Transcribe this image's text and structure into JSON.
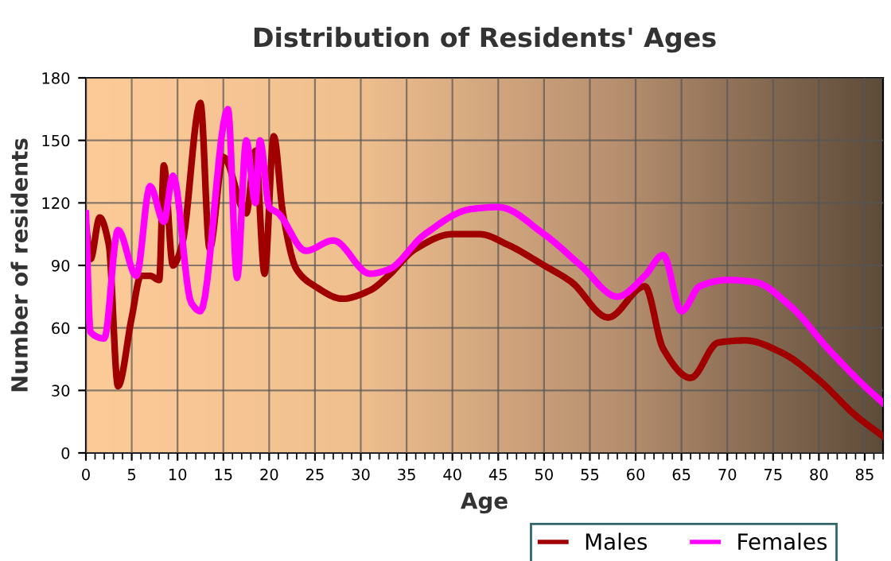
{
  "chart_data": {
    "type": "line",
    "title": "Distribution of Residents' Ages",
    "xlabel": "Age",
    "ylabel": "Number of residents",
    "xlim": [
      0,
      87
    ],
    "xticks": [
      0,
      5,
      10,
      15,
      20,
      25,
      30,
      35,
      40,
      45,
      50,
      55,
      60,
      65,
      70,
      75,
      80,
      85
    ],
    "ylim": [
      0,
      180
    ],
    "yticks": [
      0,
      30,
      60,
      90,
      120,
      150,
      180
    ],
    "grid": true,
    "legend": "bottom",
    "series": [
      {
        "name": "Males",
        "color": "#a00000",
        "x": [
          0,
          0.5,
          1.5,
          2.5,
          3.5,
          5,
          6,
          7,
          8,
          8.5,
          9.5,
          10.5,
          12.5,
          13.5,
          15,
          17.5,
          18.5,
          19.5,
          20.5,
          21.5,
          23,
          25,
          28,
          31,
          33,
          36,
          40,
          43,
          46,
          50,
          53,
          57,
          61,
          63,
          66,
          69,
          72,
          76,
          80,
          84,
          87
        ],
        "values": [
          110,
          93,
          113,
          100,
          32,
          65,
          85,
          85,
          83,
          138,
          90,
          100,
          168,
          98,
          142,
          115,
          145,
          86,
          152,
          115,
          88,
          80,
          74,
          78,
          85,
          98,
          105,
          105,
          100,
          90,
          82,
          65,
          80,
          50,
          36,
          53,
          54,
          48,
          35,
          18,
          8
        ]
      },
      {
        "name": "Females",
        "color": "#ff00ff",
        "x": [
          0,
          0.5,
          2,
          3.5,
          5.5,
          7,
          8.5,
          9.5,
          11.5,
          12.5,
          15.5,
          16.5,
          17.5,
          18.5,
          19,
          20,
          21,
          24,
          27,
          31,
          33,
          37,
          42,
          45,
          50,
          54,
          58,
          61,
          63,
          65,
          67,
          70,
          73,
          77,
          81,
          85,
          87
        ],
        "values": [
          115,
          58,
          55,
          107,
          85,
          128,
          111,
          133,
          72,
          68,
          165,
          84,
          150,
          120,
          150,
          118,
          115,
          97,
          102,
          86,
          88,
          105,
          117,
          118,
          105,
          90,
          75,
          85,
          95,
          68,
          80,
          83,
          82,
          70,
          50,
          32,
          24
        ]
      }
    ]
  }
}
